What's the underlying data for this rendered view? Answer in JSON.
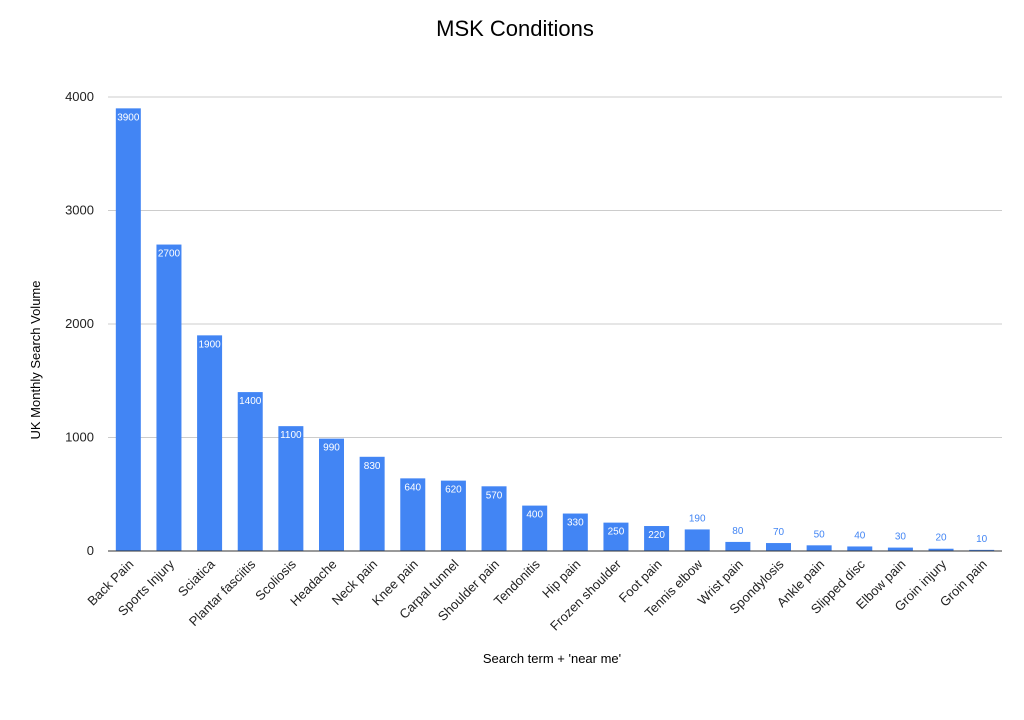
{
  "chart_data": {
    "type": "bar",
    "title": "MSK Conditions",
    "xlabel": "Search term + 'near me'",
    "ylabel": "UK Monthly Search Volume",
    "ylim": [
      0,
      4000
    ],
    "yticks": [
      "0",
      "1000",
      "2000",
      "3000",
      "4000"
    ],
    "grid": true,
    "legend": "none",
    "bar_color": "#4285f4",
    "categories": [
      "Back Pain",
      "Sports Injury",
      "Sciatica",
      "Plantar fasciitis",
      "Scoliosis",
      "Headache",
      "Neck pain",
      "Knee pain",
      "Carpal tunnel",
      "Shoulder pain",
      "Tendonitis",
      "Hip pain",
      "Frozen shoulder",
      "Foot pain",
      "Tennis elbow",
      "Wrist pain",
      "Spondylosis",
      "Ankle pain",
      "Slipped disc",
      "Elbow pain",
      "Groin injury",
      "Groin pain"
    ],
    "values": [
      3900,
      2700,
      1900,
      1400,
      1100,
      990,
      830,
      640,
      620,
      570,
      400,
      330,
      250,
      220,
      190,
      80,
      70,
      50,
      40,
      30,
      20,
      10
    ]
  }
}
